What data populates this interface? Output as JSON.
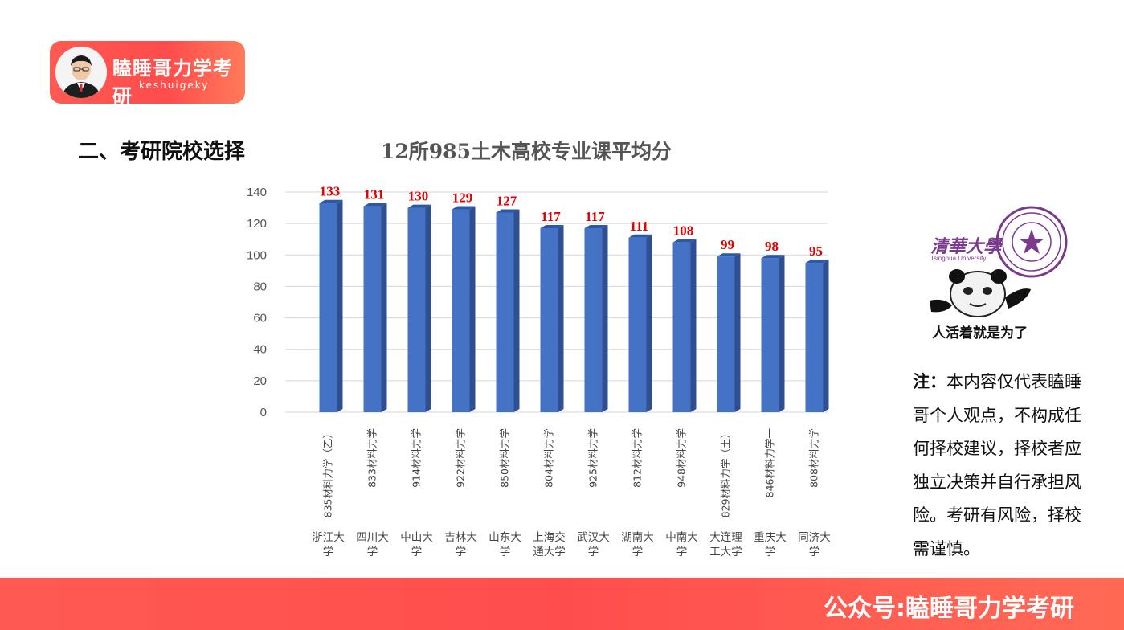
{
  "logo": {
    "brand": "瞌睡哥力学考研",
    "sub": "keshuigeky"
  },
  "section_title": "二、考研院校选择",
  "illustration": {
    "uni_cn": "清華大學",
    "uni_en": "Tsinghua University",
    "caption": "人活着就是为了"
  },
  "note": {
    "label": "注：",
    "text": "本内容仅代表瞌睡哥个人观点，不构成任何择校建议，择校者应独立决策并自行承担风险。考研有风险，择校需谨慎。"
  },
  "footer": {
    "text": "公众号:瞌睡哥力学考研"
  },
  "colors": {
    "bar": "#4472c4",
    "bar_side": "#2f4f91",
    "bar_top": "#2c58a8",
    "label": "#e00000",
    "accent": "#ff4c4c"
  },
  "chart_data": {
    "type": "bar",
    "title": "12所985土木高校专业课平均分",
    "ylim": [
      0,
      140
    ],
    "yticks": [
      0,
      20,
      40,
      60,
      80,
      100,
      120,
      140
    ],
    "grid": true,
    "categories": [
      {
        "code": "835材料力学（乙）",
        "school": [
          "浙江大",
          "学"
        ]
      },
      {
        "code": "833材料力学",
        "school": [
          "四川大",
          "学"
        ]
      },
      {
        "code": "914材料力学",
        "school": [
          "中山大",
          "学"
        ]
      },
      {
        "code": "922材料力学",
        "school": [
          "吉林大",
          "学"
        ]
      },
      {
        "code": "850材料力学",
        "school": [
          "山东大",
          "学"
        ]
      },
      {
        "code": "804材料力学",
        "school": [
          "上海交",
          "通大学"
        ]
      },
      {
        "code": "925材料力学",
        "school": [
          "武汉大",
          "学"
        ]
      },
      {
        "code": "812材料力学",
        "school": [
          "湖南大",
          "学"
        ]
      },
      {
        "code": "948材料力学",
        "school": [
          "中南大",
          "学"
        ]
      },
      {
        "code": "829材料力学（土）",
        "school": [
          "大连理",
          "工大学"
        ]
      },
      {
        "code": "846材料力学一",
        "school": [
          "重庆大",
          "学"
        ]
      },
      {
        "code": "808材料力学",
        "school": [
          "同济大",
          "学"
        ]
      }
    ],
    "values": [
      133,
      131,
      130,
      129,
      127,
      117,
      117,
      111,
      108,
      99,
      98,
      95
    ]
  }
}
